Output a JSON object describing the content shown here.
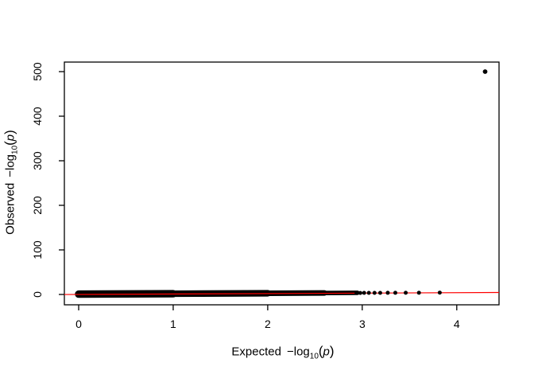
{
  "figure": {
    "background": "#ffffff",
    "title": ""
  },
  "colors": {
    "background": "#ffffff",
    "points": "#000000",
    "axis": "#000000",
    "reference_line": "#fe0000"
  },
  "axes": {
    "x_title": {
      "word": "Expected",
      "minus_log": "−log",
      "subscript": "10",
      "open_paren": "(",
      "variable": "p",
      "close_paren": ")"
    },
    "y_title": {
      "word": "Observed",
      "minus_log": "−log",
      "subscript": "10",
      "open_paren": "(",
      "variable": "p",
      "close_paren": ")"
    }
  },
  "chart_data": {
    "type": "scatter",
    "title": "",
    "xlabel": "Expected −log10(p)",
    "ylabel": "Observed −log10(p)",
    "xlim": [
      -0.15,
      4.45
    ],
    "ylim": [
      -23,
      521
    ],
    "x_ticks": [
      0,
      1,
      2,
      3,
      4
    ],
    "y_ticks": [
      0,
      100,
      200,
      300,
      400,
      500
    ],
    "grid": false,
    "legend": "none",
    "reference_line": {
      "type": "identity",
      "intercept": 0,
      "slope": 1,
      "color": "#fe0000"
    },
    "point_color": "#000000",
    "points": {
      "outlier": {
        "x": 4.3,
        "y": 500
      },
      "tail": [
        {
          "x": 2.94,
          "y": 3.4
        },
        {
          "x": 2.98,
          "y": 3.4
        },
        {
          "x": 3.02,
          "y": 3.5
        },
        {
          "x": 3.07,
          "y": 3.5
        },
        {
          "x": 3.13,
          "y": 3.6
        },
        {
          "x": 3.19,
          "y": 3.6
        },
        {
          "x": 3.27,
          "y": 3.7
        },
        {
          "x": 3.35,
          "y": 3.7
        },
        {
          "x": 3.46,
          "y": 3.8
        },
        {
          "x": 3.6,
          "y": 3.9
        },
        {
          "x": 3.82,
          "y": 4.1
        }
      ],
      "dense_band": {
        "x_min": 0.0,
        "x_max": 2.95,
        "y_min": 0,
        "y_max": 6,
        "n_points": 10000,
        "description": "Approximately 10,000 overlapping points lying along the identity line (observed ≈ expected), forming a solid black band near y ≈ 0 on the 0–500 scale"
      }
    }
  }
}
